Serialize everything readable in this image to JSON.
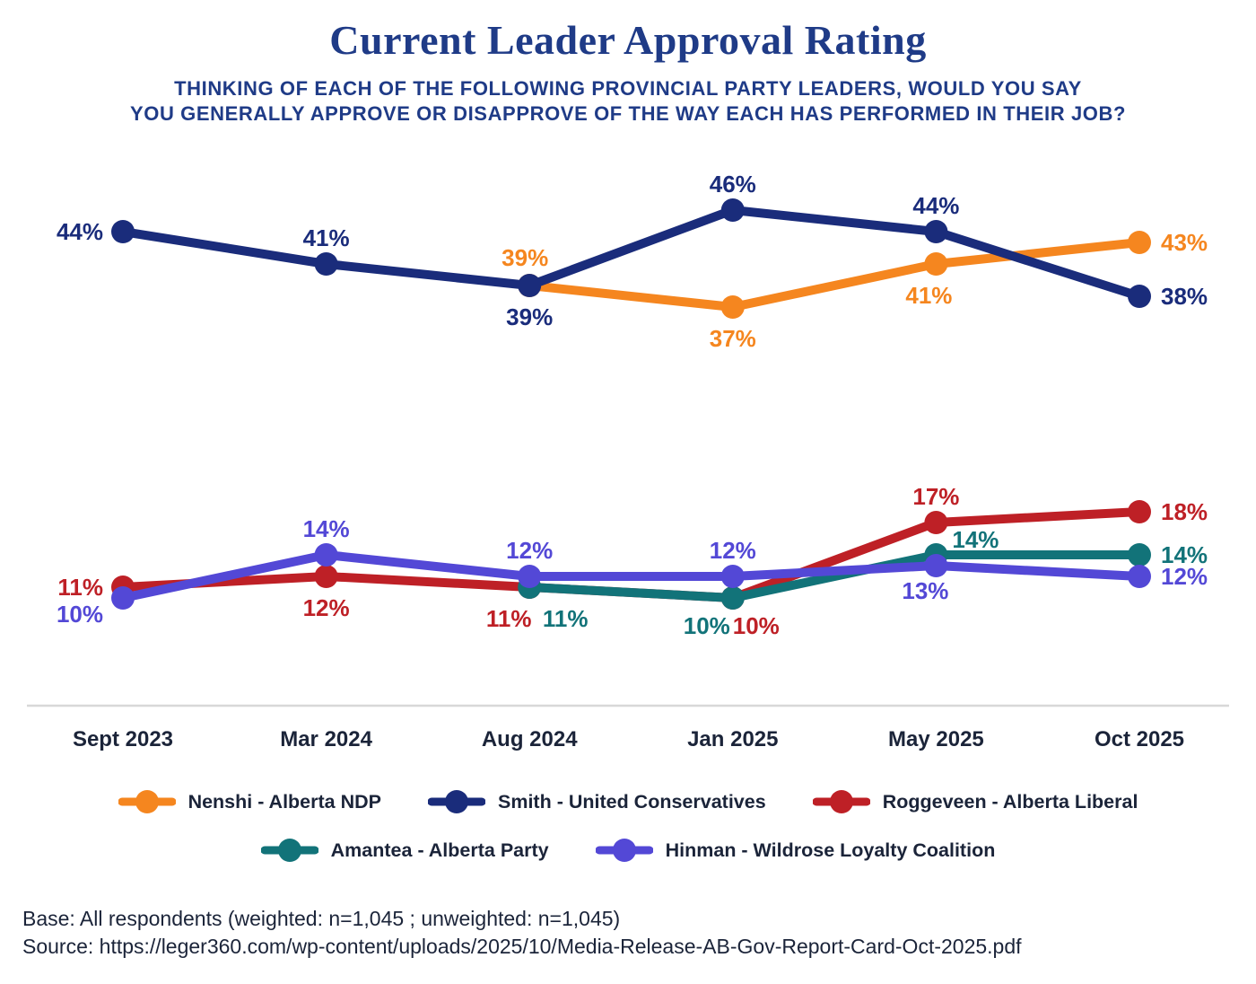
{
  "title": "Current Leader Approval Rating",
  "subtitle_line1": "THINKING OF EACH OF THE FOLLOWING PROVINCIAL PARTY LEADERS, WOULD YOU SAY",
  "subtitle_line2": "YOU GENERALLY APPROVE OR DISAPPROVE OF THE WAY EACH HAS PERFORMED IN THEIR JOB?",
  "colors": {
    "navy": "#1a2c7b",
    "orange": "#f5861f",
    "red": "#be2026",
    "teal": "#127379",
    "purple": "#5348d6",
    "axis": "#d8d8d8",
    "text_dark": "#1b2439",
    "heading": "#1f3b87"
  },
  "chart_data": {
    "type": "line",
    "categories": [
      "Sept 2023",
      "Mar 2024",
      "Aug 2024",
      "Jan 2025",
      "May 2025",
      "Oct 2025"
    ],
    "ylim": [
      0,
      50
    ],
    "grid": false,
    "legend_position": "bottom",
    "axis_color": "#d8d8d8",
    "series": [
      {
        "name": "Roggeveen - Alberta Liberal",
        "color": "#be2026",
        "values": [
          11,
          12,
          11,
          10,
          17,
          18
        ],
        "label_pos": [
          [
            -22,
            9,
            "end"
          ],
          [
            0,
            44,
            "middle"
          ],
          [
            -23,
            44,
            "middle"
          ],
          [
            26,
            40,
            "middle"
          ],
          [
            0,
            -20,
            "middle"
          ],
          [
            24,
            9,
            "start"
          ]
        ]
      },
      {
        "name": "Amantea - Alberta Party",
        "color": "#127379",
        "values": [
          null,
          null,
          11,
          10,
          14,
          14
        ],
        "label_pos": [
          null,
          null,
          [
            40,
            44,
            "middle"
          ],
          [
            -29,
            40,
            "middle"
          ],
          [
            44,
            -8,
            "middle"
          ],
          [
            24,
            9,
            "start"
          ]
        ]
      },
      {
        "name": "Hinman - Wildrose Loyalty Coalition",
        "color": "#5348d6",
        "values": [
          10,
          14,
          12,
          12,
          13,
          12
        ],
        "label_pos": [
          [
            -22,
            27,
            "end"
          ],
          [
            0,
            -20,
            "middle"
          ],
          [
            0,
            -20,
            "middle"
          ],
          [
            0,
            -20,
            "middle"
          ],
          [
            -12,
            37,
            "middle"
          ],
          [
            24,
            9,
            "start"
          ]
        ]
      },
      {
        "name": "Nenshi - Alberta NDP",
        "color": "#f5861f",
        "values": [
          null,
          null,
          39,
          37,
          41,
          43
        ],
        "label_pos": [
          null,
          null,
          [
            -5,
            -22,
            "middle"
          ],
          [
            0,
            44,
            "middle"
          ],
          [
            -8,
            44,
            "middle"
          ],
          [
            24,
            9,
            "start"
          ]
        ]
      },
      {
        "name": "Smith - United Conservatives",
        "color": "#1a2c7b",
        "values": [
          44,
          41,
          39,
          46,
          44,
          38
        ],
        "label_pos": [
          [
            -22,
            9,
            "end"
          ],
          [
            0,
            -20,
            "middle"
          ],
          [
            0,
            44,
            "middle"
          ],
          [
            0,
            -20,
            "middle"
          ],
          [
            0,
            -20,
            "middle"
          ],
          [
            24,
            9,
            "start"
          ]
        ]
      }
    ]
  },
  "legend": {
    "rows": [
      [
        {
          "label": "Nenshi - Alberta NDP",
          "color": "#f5861f"
        },
        {
          "label": "Smith - United Conservatives",
          "color": "#1a2c7b"
        },
        {
          "label": "Roggeveen - Alberta Liberal",
          "color": "#be2026"
        }
      ],
      [
        {
          "label": "Amantea - Alberta Party",
          "color": "#127379"
        },
        {
          "label": "Hinman - Wildrose Loyalty Coalition",
          "color": "#5348d6"
        }
      ]
    ]
  },
  "footer": {
    "base": "Base: All respondents (weighted: n=1,045 ; unweighted: n=1,045)",
    "source": "Source: https://leger360.com/wp-content/uploads/2025/10/Media-Release-AB-Gov-Report-Card-Oct-2025.pdf"
  }
}
